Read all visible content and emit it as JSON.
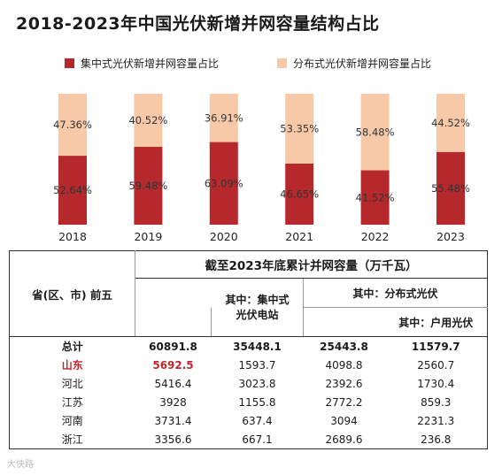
{
  "title": "2018-2023年中国光伏新增并网容量结构占比",
  "colors": {
    "centralized": "#b5282c",
    "distributed": "#f7c9a8",
    "highlight": "#c0262d"
  },
  "chart_data": {
    "type": "bar",
    "stacked": true,
    "title": "2018-2023年中国光伏新增并网容量结构占比",
    "categories": [
      "2018",
      "2019",
      "2020",
      "2021",
      "2022",
      "2023"
    ],
    "series": [
      {
        "name": "集中式光伏新增并网容量占比",
        "values": [
          52.64,
          59.48,
          63.09,
          46.65,
          41.52,
          55.48
        ],
        "labels": [
          "52.64%",
          "59.48%",
          "63.09%",
          "46.65%",
          "41.52%",
          "55.48%"
        ]
      },
      {
        "name": "分布式光伏新增并网容量占比",
        "values": [
          47.36,
          40.52,
          36.91,
          53.35,
          58.48,
          44.52
        ],
        "labels": [
          "47.36%",
          "40.52%",
          "36.91%",
          "53.35%",
          "58.48%",
          "44.52%"
        ]
      }
    ],
    "ylim": [
      0,
      100
    ],
    "legend": "top"
  },
  "table": {
    "corner": "省(区、市) 前五",
    "title": "截至2023年底累计并网容量（万千瓦）",
    "col_centralized": "其中：集中式光伏电站",
    "col_distributed": "其中：分布式光伏",
    "col_household": "其中：户用光伏",
    "rows": [
      {
        "name": "总计",
        "total": "60891.8",
        "centralized": "35448.1",
        "distributed": "25443.8",
        "household": "11579.7"
      },
      {
        "name": "山东",
        "total": "5692.5",
        "centralized": "1593.7",
        "distributed": "4098.8",
        "household": "2560.7"
      },
      {
        "name": "河北",
        "total": "5416.4",
        "centralized": "3023.8",
        "distributed": "2392.6",
        "household": "1730.4"
      },
      {
        "name": "江苏",
        "total": "3928",
        "centralized": "1155.8",
        "distributed": "2772.2",
        "household": "859.3"
      },
      {
        "name": "河南",
        "total": "3731.4",
        "centralized": "637.4",
        "distributed": "3094",
        "household": "2231.3"
      },
      {
        "name": "浙江",
        "total": "3356.6",
        "centralized": "667.1",
        "distributed": "2689.6",
        "household": "236.8"
      }
    ]
  },
  "watermark": "大侠路"
}
